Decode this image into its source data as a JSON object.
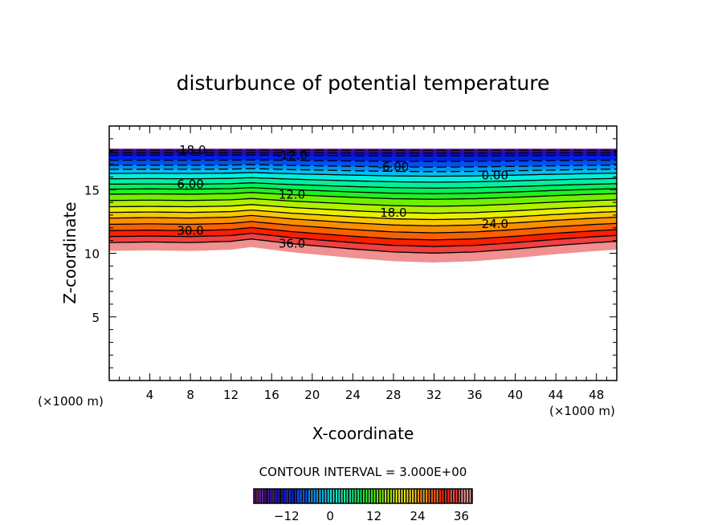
{
  "chart_data": {
    "type": "contour",
    "title": "disturbunce of potential temperature",
    "xlabel": "X-coordinate",
    "ylabel": "Z-coordinate",
    "x_unit_left": "(×1000 m)",
    "x_unit_right": "(×1000 m)",
    "xlim": [
      0,
      50
    ],
    "ylim": [
      0,
      20
    ],
    "xticks": [
      4,
      8,
      12,
      16,
      20,
      24,
      28,
      32,
      36,
      40,
      44,
      48
    ],
    "yticks": [
      5,
      10,
      15
    ],
    "contour_interval_text": "CONTOUR INTERVAL = 3.000E+00",
    "contour_interval": 3,
    "value_range": [
      -21,
      39
    ],
    "data_top_z": 18.2,
    "lower_boundary": {
      "x": [
        0,
        4,
        8,
        12,
        14,
        18,
        24,
        28,
        32,
        36,
        40,
        44,
        48,
        50
      ],
      "z": [
        10.25,
        10.3,
        10.25,
        10.35,
        10.55,
        10.15,
        9.7,
        9.45,
        9.35,
        9.45,
        9.7,
        10.0,
        10.25,
        10.35
      ]
    },
    "reference_profile": {
      "value": [
        -21,
        -18,
        -12,
        -6,
        0,
        6,
        12,
        18,
        24,
        30,
        36,
        39
      ],
      "z": [
        18.2,
        18.1,
        17.7,
        16.9,
        16.25,
        15.4,
        14.6,
        13.6,
        12.7,
        11.7,
        10.75,
        10.1
      ],
      "at_x": 18
    },
    "contour_labels": [
      "-18.0",
      "-12.0",
      "-6.00",
      "0.00",
      "6.00",
      "12.0",
      "18.0",
      "24.0",
      "30.0",
      "36.0"
    ],
    "contour_label_values": [
      -18,
      -12,
      -6,
      0,
      6,
      12,
      18,
      24,
      30,
      36
    ],
    "colorbar": {
      "ticks": [
        -12,
        0,
        12,
        24,
        36
      ],
      "tick_labels": [
        "−12",
        "0",
        "12",
        "24",
        "36"
      ],
      "colors": [
        "#6a0a9a",
        "#3a0aa0",
        "#1010c0",
        "#0020e0",
        "#0050f0",
        "#0090f0",
        "#00c0f0",
        "#00f0e0",
        "#00f0a0",
        "#00f060",
        "#20f020",
        "#70f000",
        "#b0f000",
        "#e8f000",
        "#f8c800",
        "#f89000",
        "#f86000",
        "#f82000",
        "#f04040",
        "#f09090"
      ]
    }
  }
}
